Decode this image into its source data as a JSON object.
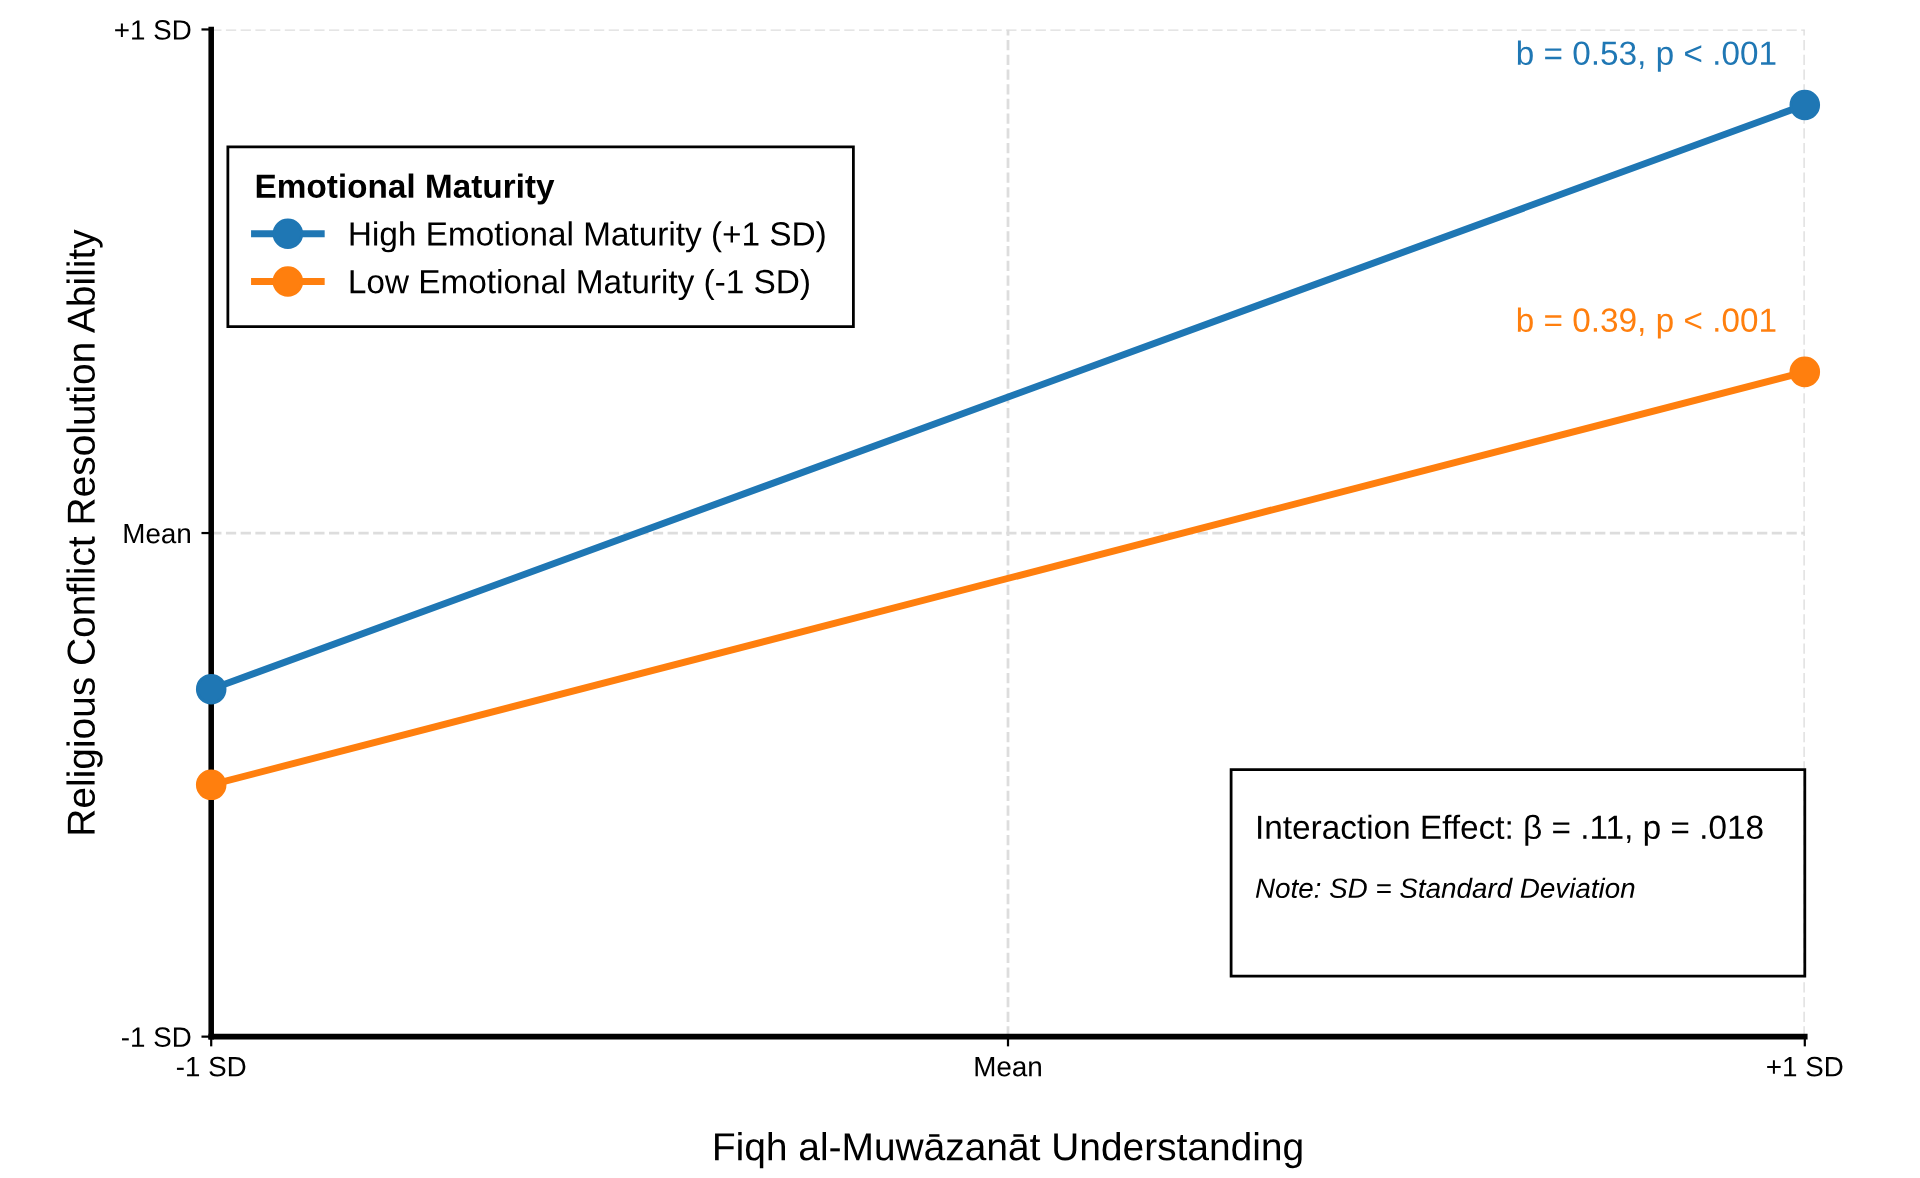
{
  "chart_data": {
    "type": "line",
    "xlabel": "Fiqh al-Muwāzanāt Understanding",
    "ylabel": "Religious Conflict Resolution Ability",
    "legend_title": "Emotional Maturity",
    "x": [
      -1,
      1
    ],
    "series": [
      {
        "name": "High Emotional Maturity (+1 SD)",
        "color": "#1f77b4",
        "values": [
          -0.31,
          0.85
        ]
      },
      {
        "name": "Low Emotional Maturity (-1 SD)",
        "color": "#ff7f0e",
        "values": [
          -0.5,
          0.32
        ]
      }
    ],
    "xlim": [
      -1,
      1
    ],
    "ylim": [
      -1,
      1
    ],
    "xticks": [
      {
        "value": -1,
        "label": "-1 SD"
      },
      {
        "value": 0,
        "label": "Mean"
      },
      {
        "value": 1,
        "label": "+1 SD"
      }
    ],
    "yticks": [
      {
        "value": -1,
        "label": "-1 SD"
      },
      {
        "value": 0,
        "label": "Mean"
      },
      {
        "value": 1,
        "label": "+1 SD"
      }
    ],
    "annotations": [
      {
        "text": "b = 0.53, p < .001",
        "x": 1,
        "y": 0.85
      },
      {
        "text": "b = 0.39, p < .001",
        "x": 1,
        "y": 0.32
      },
      "Interaction Effect: β = .11, p = .018",
      "Note: SD = Standard Deviation"
    ],
    "grid": true,
    "legend": "top left",
    "marker": "circle",
    "line_style": "solid"
  }
}
